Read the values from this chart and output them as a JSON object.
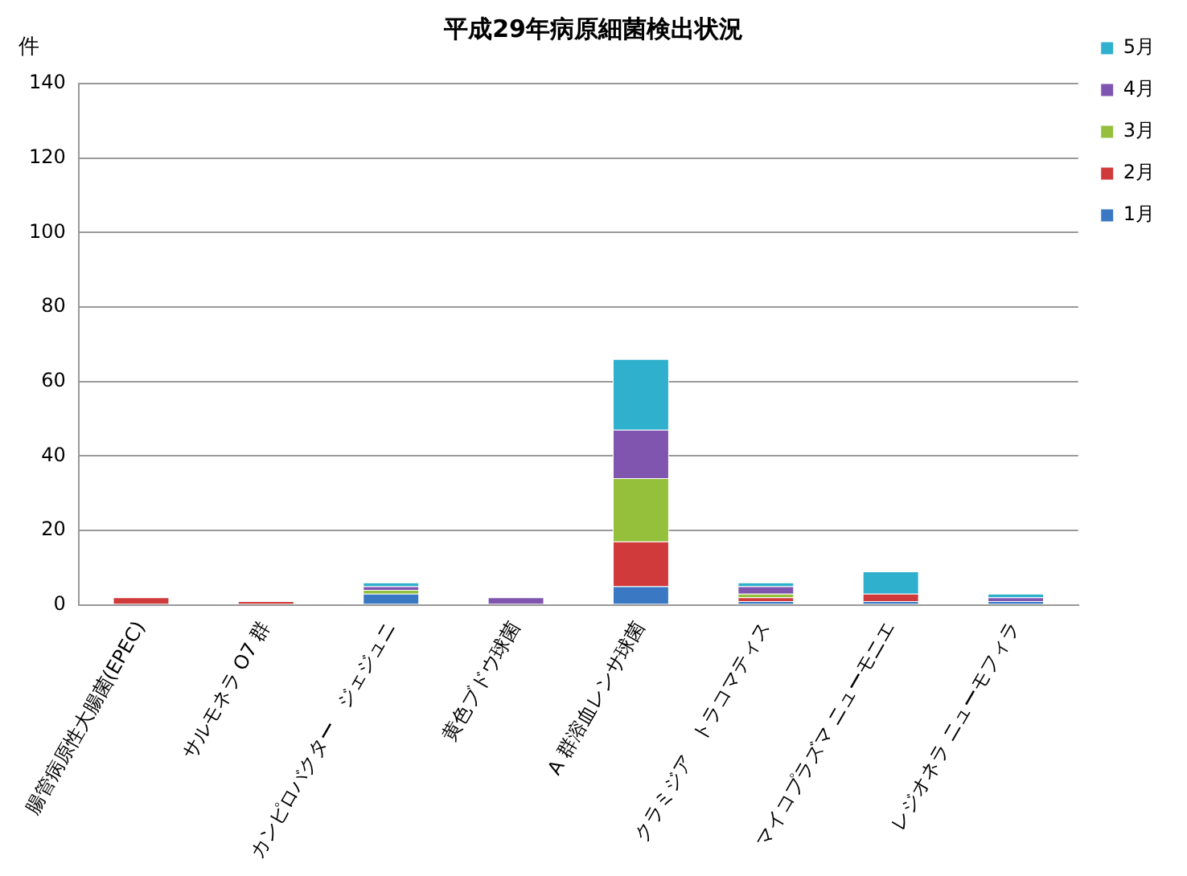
{
  "chart_data": {
    "type": "bar",
    "title": "平成29年病原細菌検出状況",
    "ylabel": "件",
    "stacked": true,
    "categories": [
      "腸管病原性大腸菌(EPEC)",
      "サルモネラ O7 群",
      "カンピロバクター　ジェジュニ",
      "黄色ブドウ球菌",
      "A 群溶血レンサ球菌",
      "クラミジア　トラコマティス",
      "マイコプラズマ ニューモニエ",
      "レジオネラ ニューモフィラ"
    ],
    "series": [
      {
        "name": "1月",
        "color": "#3a78c4",
        "values": [
          0,
          0,
          3,
          0,
          5,
          1,
          1,
          1
        ]
      },
      {
        "name": "2月",
        "color": "#d03a3a",
        "values": [
          2,
          1,
          0,
          0,
          12,
          1,
          2,
          0
        ]
      },
      {
        "name": "3月",
        "color": "#94c03c",
        "values": [
          0,
          0,
          1,
          0,
          17,
          1,
          0,
          0
        ]
      },
      {
        "name": "4月",
        "color": "#7f55b0",
        "values": [
          0,
          0,
          1,
          2,
          13,
          2,
          0,
          1
        ]
      },
      {
        "name": "5月",
        "color": "#2fb0cc",
        "values": [
          0,
          0,
          1,
          0,
          19,
          1,
          6,
          1
        ]
      }
    ],
    "ylim": [
      0,
      140
    ],
    "yticks": [
      0,
      20,
      40,
      60,
      80,
      100,
      120,
      140
    ],
    "grid": "y",
    "legend": "right"
  }
}
